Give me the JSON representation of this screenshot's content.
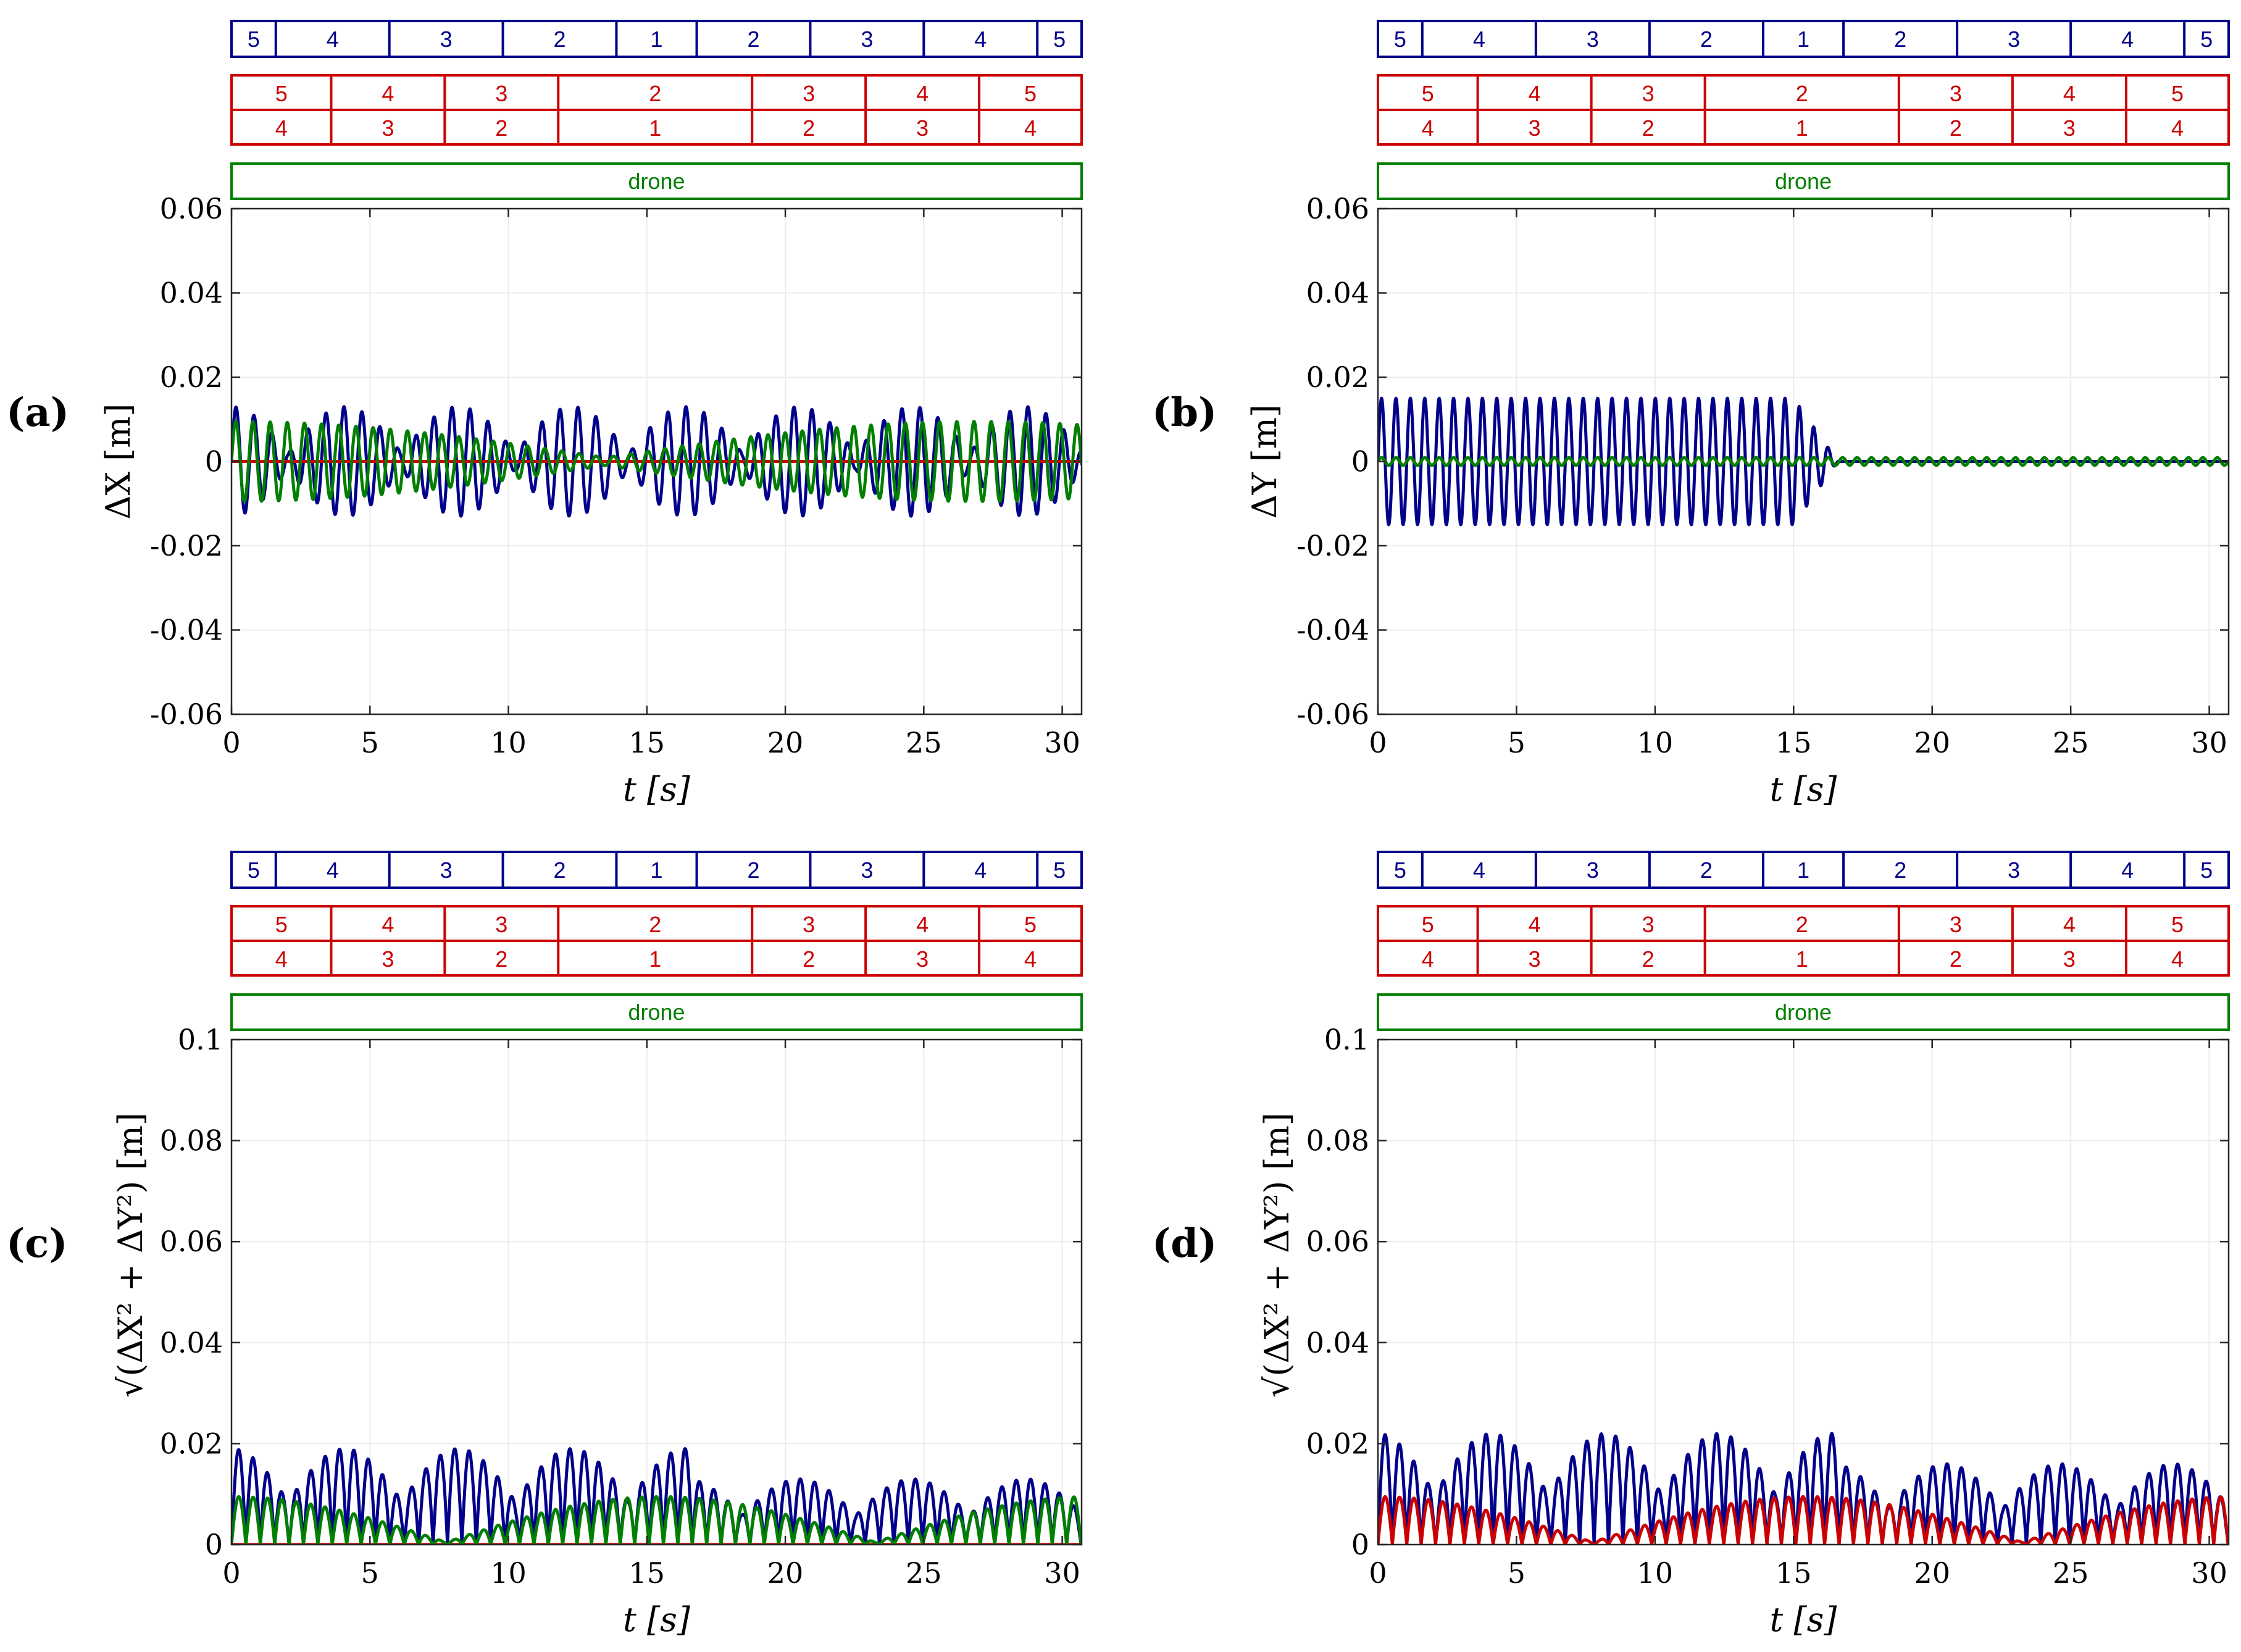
{
  "colors": {
    "blue": "#00008B",
    "red": "#CC0000",
    "green": "#007F00",
    "grid": "#ececec",
    "axis": "#262626"
  },
  "strips": {
    "blue_row": {
      "labels": [
        "5",
        "4",
        "3",
        "2",
        "1",
        "2",
        "3",
        "4",
        "5"
      ],
      "edges": [
        0,
        1.6,
        5.7,
        9.8,
        13.9,
        16.8,
        20.9,
        25.0,
        29.1,
        30.7
      ]
    },
    "red_rows": {
      "top": [
        "5",
        "4",
        "3",
        "2",
        "3",
        "4",
        "5"
      ],
      "bottom": [
        "4",
        "3",
        "2",
        "1",
        "2",
        "3",
        "4"
      ],
      "edges": [
        0,
        3.6,
        7.7,
        11.8,
        18.8,
        22.9,
        27.0,
        30.7
      ]
    },
    "drone_label": "drone"
  },
  "chart_data": [
    {
      "panel": "(a)",
      "type": "line",
      "ylabel": "ΔX [m]",
      "xlabel": "t [s]",
      "xlim": [
        0,
        30.7
      ],
      "ylim": [
        -0.06,
        0.06
      ],
      "xticks": [
        "0",
        "5",
        "10",
        "15",
        "20",
        "25",
        "30"
      ],
      "yticks": [
        "-0.06",
        "-0.04",
        "-0.02",
        "0",
        "0.02",
        "0.04",
        "0.06"
      ],
      "series": [
        {
          "name": "blue",
          "color": "#00008B",
          "model": "beat",
          "amplitude": 0.013,
          "period": 0.65,
          "beat_period": 4.1,
          "envelope_min": 0.15
        },
        {
          "name": "red",
          "color": "#CC0000",
          "model": "flat",
          "value": 0
        },
        {
          "name": "green",
          "color": "#007F00",
          "model": "beat",
          "amplitude": 0.0095,
          "period": 0.62,
          "beat_period": 27.0,
          "envelope_min": 0.1
        }
      ]
    },
    {
      "panel": "(b)",
      "type": "line",
      "ylabel": "ΔY [m]",
      "xlabel": "t [s]",
      "xlim": [
        0,
        30.7
      ],
      "ylim": [
        -0.06,
        0.06
      ],
      "xticks": [
        "0",
        "5",
        "10",
        "15",
        "20",
        "25",
        "30"
      ],
      "yticks": [
        "-0.06",
        "-0.04",
        "-0.02",
        "0",
        "0.02",
        "0.04",
        "0.06"
      ],
      "series": [
        {
          "name": "blue",
          "color": "#00008B",
          "model": "decay",
          "amplitude": 0.015,
          "period": 0.52,
          "until": 15.0,
          "decay_end": 16.6
        },
        {
          "name": "red",
          "color": "#CC0000",
          "model": "sine",
          "amplitude": 0.0009,
          "period": 0.52
        },
        {
          "name": "green",
          "color": "#007F00",
          "model": "sine",
          "amplitude": 0.0009,
          "period": 0.52
        }
      ]
    },
    {
      "panel": "(c)",
      "type": "line",
      "ylabel": "√(ΔX² + ΔY²) [m]",
      "xlabel": "t [s]",
      "xlim": [
        0,
        30.7
      ],
      "ylim": [
        0,
        0.1
      ],
      "xticks": [
        "0",
        "5",
        "10",
        "15",
        "20",
        "25",
        "30"
      ],
      "yticks": [
        "0",
        "0.02",
        "0.04",
        "0.06",
        "0.08",
        "0.1"
      ],
      "series": [
        {
          "name": "blue",
          "color": "#00008B",
          "model": "rect_beat",
          "amplitude": 0.019,
          "period": 0.52,
          "beat_period": 4.1,
          "envelope_min": 0.45,
          "switch_t": 16.6,
          "late_amplitude": 0.013
        },
        {
          "name": "red",
          "color": "#CC0000",
          "model": "flat",
          "value": 0
        },
        {
          "name": "green",
          "color": "#007F00",
          "model": "rect_beat",
          "amplitude": 0.0095,
          "period": 0.52,
          "beat_period": 15.5,
          "envelope_min": 0.05
        }
      ]
    },
    {
      "panel": "(d)",
      "type": "line",
      "ylabel": "√(ΔX² + ΔY²) [m]",
      "xlabel": "t [s]",
      "xlim": [
        0,
        30.7
      ],
      "ylim": [
        0,
        0.1
      ],
      "xticks": [
        "0",
        "5",
        "10",
        "15",
        "20",
        "25",
        "30"
      ],
      "yticks": [
        "0",
        "0.02",
        "0.04",
        "0.06",
        "0.08",
        "0.1"
      ],
      "series": [
        {
          "name": "blue",
          "color": "#00008B",
          "model": "rect_beat",
          "amplitude": 0.022,
          "period": 0.52,
          "beat_period": 4.1,
          "envelope_min": 0.45,
          "switch_t": 16.6,
          "late_amplitude": 0.016
        },
        {
          "name": "red",
          "color": "#CC0000",
          "model": "rect_beat",
          "amplitude": 0.0095,
          "period": 0.52,
          "beat_period": 15.5,
          "envelope_min": 0.05
        }
      ]
    }
  ]
}
